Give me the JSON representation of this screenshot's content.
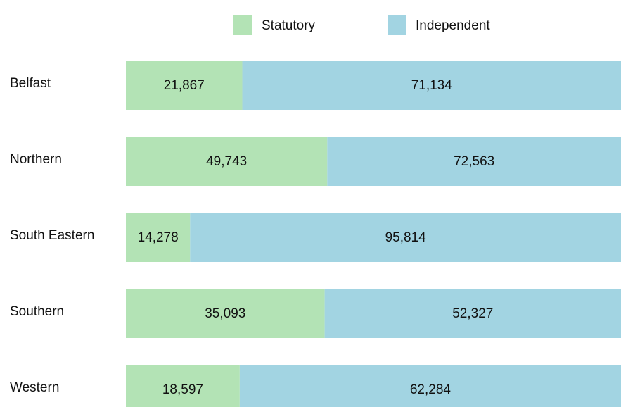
{
  "chart_data": {
    "type": "bar",
    "orientation": "horizontal",
    "stacked": "percent",
    "categories": [
      "Belfast",
      "Northern",
      "South Eastern",
      "Southern",
      "Western"
    ],
    "series": [
      {
        "name": "Statutory",
        "color": "#b3e3b5",
        "values": [
          21867,
          49743,
          14278,
          35093,
          18597
        ],
        "value_labels": [
          "21,867",
          "49,743",
          "14,278",
          "35,093",
          "18,597"
        ]
      },
      {
        "name": "Independent",
        "color": "#a2d4e2",
        "values": [
          71134,
          72563,
          95814,
          52327,
          62284
        ],
        "value_labels": [
          "71,134",
          "72,563",
          "95,814",
          "52,327",
          "62,284"
        ]
      }
    ],
    "legend": "top"
  }
}
